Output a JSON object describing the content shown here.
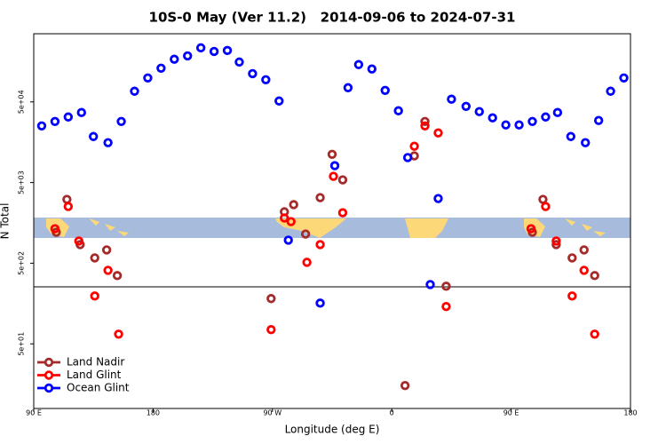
{
  "chart_data": {
    "type": "scatter",
    "title": "10S-0 May (Ver 11.2)   2014-09-06 to 2024-07-31",
    "x_label": "Longitude (deg E)",
    "y_label": "N Total",
    "log_y": true,
    "legend": "bottom-left",
    "xlim": [
      90,
      540
    ],
    "xticks": [
      {
        "value": 90,
        "label": "90 E"
      },
      {
        "value": 180,
        "label": "180"
      },
      {
        "value": 270,
        "label": "90 W"
      },
      {
        "value": 360,
        "label": "0"
      },
      {
        "value": 450,
        "label": "90 E"
      },
      {
        "value": 540,
        "label": "180"
      }
    ],
    "ylim": [
      7.9,
      350000
    ],
    "yticks": [
      {
        "value": 50,
        "label": "5e+01"
      },
      {
        "value": 500,
        "label": "5e+02"
      },
      {
        "value": 5000,
        "label": "5e+03"
      },
      {
        "value": 50000,
        "label": "5e+04"
      }
    ],
    "series": [
      {
        "name": "Land Nadir",
        "color": "#a52a2a",
        "x": [
          115,
          107,
          125,
          136,
          145,
          153,
          269,
          279,
          286,
          295,
          306,
          315,
          323,
          370,
          385,
          377,
          401,
          474,
          466,
          484,
          496,
          505,
          513
        ],
        "values": [
          3090,
          1210,
          851,
          582,
          731,
          351,
          182,
          2170,
          2660,
          1150,
          3250,
          11200,
          5400,
          15.2,
          28600,
          10700,
          259,
          3090,
          1210,
          851,
          582,
          731,
          351
        ]
      },
      {
        "name": "Land Glint",
        "color": "#ff0000",
        "x": [
          116,
          106,
          124,
          136,
          146,
          154,
          269,
          279,
          284,
          296,
          306,
          316,
          323,
          377,
          385,
          395,
          401,
          476,
          465,
          484,
          496,
          505,
          513
        ],
        "values": [
          2520,
          1340,
          942,
          196,
          408,
          66,
          75,
          1820,
          1640,
          513,
          851,
          5970,
          2110,
          14100,
          25200,
          20600,
          145,
          2520,
          1340,
          942,
          196,
          408,
          66
        ]
      },
      {
        "name": "Ocean Glint",
        "color": "#0000ff",
        "x": [
          96,
          106,
          116,
          126,
          135,
          146,
          156,
          166,
          176,
          186,
          196,
          206,
          216,
          226,
          236,
          245,
          255,
          265,
          275,
          282,
          306,
          317,
          327,
          335,
          345,
          355,
          365,
          372,
          389,
          395,
          405,
          416,
          426,
          436,
          446,
          456,
          466,
          476,
          485,
          495,
          506,
          516,
          525,
          535
        ],
        "values": [
          25200,
          28600,
          32500,
          36900,
          18600,
          15600,
          28600,
          67800,
          99100,
          131000,
          169000,
          186000,
          234000,
          211000,
          217000,
          156000,
          112000,
          94200,
          51300,
          966,
          160,
          8090,
          75000,
          145000,
          128000,
          69500,
          38800,
          10200,
          272,
          3170,
          54000,
          44000,
          37900,
          31700,
          25900,
          25900,
          28600,
          32500,
          36900,
          18600,
          15600,
          29400,
          67800,
          99100
        ]
      }
    ]
  }
}
